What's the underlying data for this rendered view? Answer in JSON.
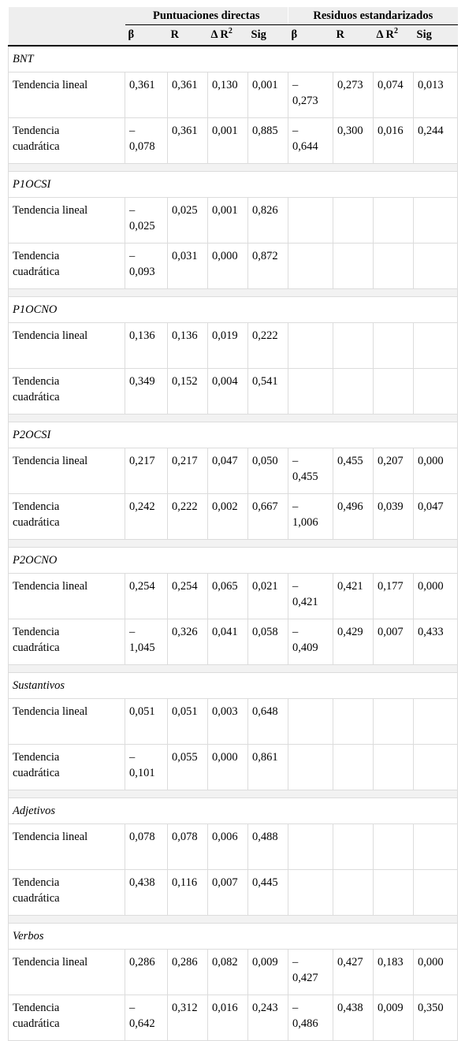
{
  "header": {
    "group1": "Puntuaciones directas",
    "group2": "Residuos estandarizados",
    "columns": [
      "β",
      "R",
      "Δ R",
      "Sig",
      "β",
      "R",
      "Δ R",
      "Sig"
    ],
    "delta_sup": "2"
  },
  "sections": [
    {
      "title": "BNT",
      "rows": [
        {
          "label": "Tendencia lineal",
          "pd": [
            "0,361",
            "0,361",
            "0,130",
            "0,001"
          ],
          "re": [
            "–\n0,273",
            "0,273",
            "0,074",
            "0,013"
          ]
        },
        {
          "label": "Tendencia\ncuadrática",
          "pd": [
            "–\n0,078",
            "0,361",
            "0,001",
            "0,885"
          ],
          "re": [
            "–\n0,644",
            "0,300",
            "0,016",
            "0,244"
          ]
        }
      ]
    },
    {
      "title": "P1OCSI",
      "rows": [
        {
          "label": "Tendencia lineal",
          "pd": [
            "–\n0,025",
            "0,025",
            "0,001",
            "0,826"
          ],
          "re": [
            "",
            "",
            "",
            ""
          ]
        },
        {
          "label": "Tendencia\ncuadrática",
          "pd": [
            "–\n0,093",
            "0,031",
            "0,000",
            "0,872"
          ],
          "re": [
            "",
            "",
            "",
            ""
          ]
        }
      ]
    },
    {
      "title": "P1OCNO",
      "rows": [
        {
          "label": "Tendencia lineal",
          "pd": [
            "0,136",
            "0,136",
            "0,019",
            "0,222"
          ],
          "re": [
            "",
            "",
            "",
            ""
          ]
        },
        {
          "label": "Tendencia\ncuadrática",
          "pd": [
            "0,349",
            "0,152",
            "0,004",
            "0,541"
          ],
          "re": [
            "",
            "",
            "",
            ""
          ]
        }
      ]
    },
    {
      "title": "P2OCSI",
      "rows": [
        {
          "label": "Tendencia lineal",
          "pd": [
            "0,217",
            "0,217",
            "0,047",
            "0,050"
          ],
          "re": [
            "–\n0,455",
            "0,455",
            "0,207",
            "0,000"
          ]
        },
        {
          "label": "Tendencia\ncuadrática",
          "pd": [
            "0,242",
            "0,222",
            "0,002",
            "0,667"
          ],
          "re": [
            "–\n1,006",
            "0,496",
            "0,039",
            "0,047"
          ]
        }
      ]
    },
    {
      "title": "P2OCNO",
      "rows": [
        {
          "label": "Tendencia lineal",
          "pd": [
            "0,254",
            "0,254",
            "0,065",
            "0,021"
          ],
          "re": [
            "–\n0,421",
            "0,421",
            "0,177",
            "0,000"
          ]
        },
        {
          "label": "Tendencia\ncuadrática",
          "pd": [
            "–\n1,045",
            "0,326",
            "0,041",
            "0,058"
          ],
          "re": [
            "–\n0,409",
            "0,429",
            "0,007",
            "0,433"
          ]
        }
      ]
    },
    {
      "title": "Sustantivos",
      "rows": [
        {
          "label": "Tendencia lineal",
          "pd": [
            "0,051",
            "0,051",
            "0,003",
            "0,648"
          ],
          "re": [
            "",
            "",
            "",
            ""
          ]
        },
        {
          "label": "Tendencia\ncuadrática",
          "pd": [
            "–\n0,101",
            "0,055",
            "0,000",
            "0,861"
          ],
          "re": [
            "",
            "",
            "",
            ""
          ]
        }
      ]
    },
    {
      "title": "Adjetivos",
      "rows": [
        {
          "label": "Tendencia lineal",
          "pd": [
            "0,078",
            "0,078",
            "0,006",
            "0,488"
          ],
          "re": [
            "",
            "",
            "",
            ""
          ]
        },
        {
          "label": "Tendencia\ncuadrática",
          "pd": [
            "0,438",
            "0,116",
            "0,007",
            "0,445"
          ],
          "re": [
            "",
            "",
            "",
            ""
          ]
        }
      ]
    },
    {
      "title": "Verbos",
      "rows": [
        {
          "label": "Tendencia lineal",
          "pd": [
            "0,286",
            "0,286",
            "0,082",
            "0,009"
          ],
          "re": [
            "–\n0,427",
            "0,427",
            "0,183",
            "0,000"
          ]
        },
        {
          "label": "Tendencia\ncuadrática",
          "pd": [
            "–\n0,642",
            "0,312",
            "0,016",
            "0,243"
          ],
          "re": [
            "–\n0,486",
            "0,438",
            "0,009",
            "0,350"
          ]
        }
      ]
    }
  ]
}
